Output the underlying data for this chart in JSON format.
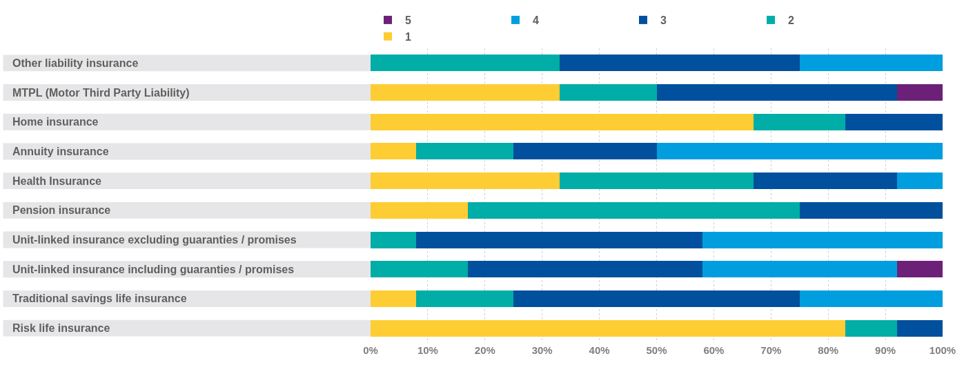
{
  "chart_data": {
    "type": "bar",
    "orientation": "horizontal",
    "stacked": true,
    "categories": [
      "Other liability insurance",
      "MTPL (Motor Third Party Liability)",
      "Home insurance",
      "Annuity insurance",
      "Health Insurance",
      "Pension insurance",
      "Unit-linked insurance excluding guaranties / promises",
      "Unit-linked insurance including guaranties / promises",
      "Traditional savings life insurance",
      "Risk life insurance"
    ],
    "series": [
      {
        "name": "1",
        "color": "#fdcd33",
        "values": [
          0,
          33,
          67,
          8,
          33,
          17,
          0,
          0,
          8,
          83
        ]
      },
      {
        "name": "2",
        "color": "#00ada7",
        "values": [
          33,
          17,
          16,
          17,
          34,
          58,
          8,
          17,
          17,
          9
        ]
      },
      {
        "name": "3",
        "color": "#00509d",
        "values": [
          42,
          42,
          17,
          25,
          25,
          25,
          50,
          41,
          50,
          8
        ]
      },
      {
        "name": "4",
        "color": "#009ede",
        "values": [
          25,
          0,
          0,
          50,
          8,
          0,
          42,
          34,
          25,
          0
        ]
      },
      {
        "name": "5",
        "color": "#6d2077",
        "values": [
          0,
          8,
          0,
          0,
          0,
          0,
          0,
          8,
          0,
          0
        ]
      }
    ],
    "xlim": [
      0,
      100
    ],
    "xticks": [
      {
        "value": 0,
        "label": "0%"
      },
      {
        "value": 10,
        "label": "10%"
      },
      {
        "value": 20,
        "label": "20%"
      },
      {
        "value": 30,
        "label": "30%"
      },
      {
        "value": 40,
        "label": "40%"
      },
      {
        "value": 50,
        "label": "50%"
      },
      {
        "value": 60,
        "label": "60%"
      },
      {
        "value": 70,
        "label": "70%"
      },
      {
        "value": 80,
        "label": "80%"
      },
      {
        "value": 90,
        "label": "90%"
      },
      {
        "value": 100,
        "label": "100%"
      }
    ],
    "grid": "x",
    "legend": "top"
  }
}
